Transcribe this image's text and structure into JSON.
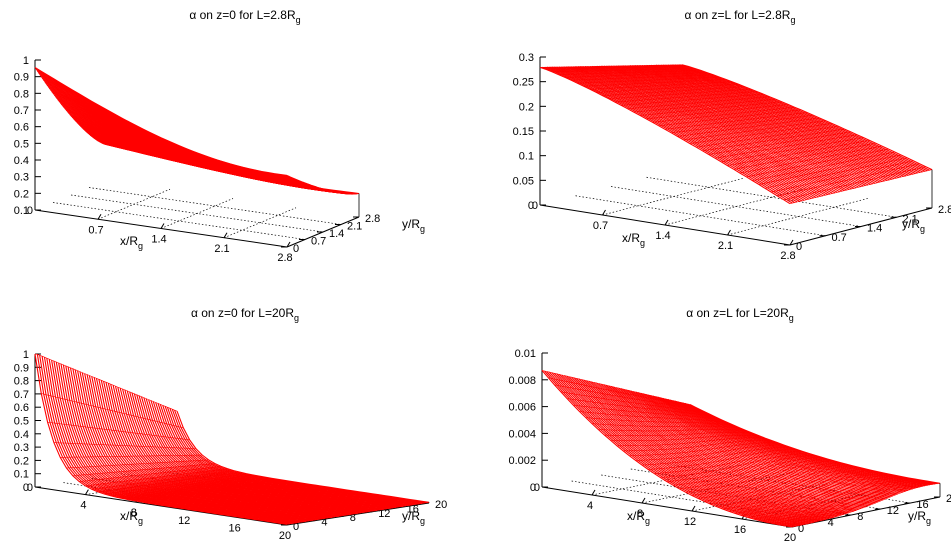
{
  "figure": {
    "panels": [
      {
        "id": "tl",
        "title_prefix": "α on z=0 for L=2.8R",
        "title_sub": "g",
        "xlabel_main": "x/R",
        "xlabel_sub": "g",
        "ylabel_main": "y/R",
        "ylabel_sub": "g"
      },
      {
        "id": "tr",
        "title_prefix": "α on z=L for L=2.8R",
        "title_sub": "g",
        "xlabel_main": "x/R",
        "xlabel_sub": "g",
        "ylabel_main": "y/R",
        "ylabel_sub": "g"
      },
      {
        "id": "bl",
        "title_prefix": "α on z=0 for L=20R",
        "title_sub": "g",
        "xlabel_main": "x/R",
        "xlabel_sub": "g",
        "ylabel_main": "y/R",
        "ylabel_sub": "g"
      },
      {
        "id": "br",
        "title_prefix": "α on z=L for L=20R",
        "title_sub": "g",
        "xlabel_main": "x/R",
        "xlabel_sub": "g",
        "ylabel_main": "y/R",
        "ylabel_sub": "g"
      }
    ]
  },
  "chart_data": [
    {
      "type": "surface",
      "title": "α on z=0 for L=2.8Rg",
      "xlabel": "x/Rg",
      "ylabel": "y/Rg",
      "x_ticks": [
        "0",
        "0.7",
        "1.4",
        "2.1",
        "2.8"
      ],
      "y_ticks": [
        "0",
        "0.7",
        "1.4",
        "2.1",
        "2.8"
      ],
      "z_ticks": [
        "0.1",
        "0.2",
        "0.3",
        "0.4",
        "0.5",
        "0.6",
        "0.7",
        "0.8",
        "0.9",
        "1"
      ],
      "xlim": [
        0,
        2.8
      ],
      "ylim": [
        0,
        2.8
      ],
      "zlim": [
        0.1,
        1
      ],
      "surface_color": "#ff0000",
      "profile_x": [
        0,
        0.7,
        1.4,
        2.1,
        2.8
      ],
      "profile_y_edge_x0": [
        1.0,
        0.62,
        0.5,
        0.4,
        0.33
      ],
      "profile_y_edge_x2p8": [
        0.55,
        0.3,
        0.22,
        0.25,
        0.33
      ],
      "profile_along_y0": [
        1.0,
        0.7,
        0.4,
        0.2,
        0.1
      ]
    },
    {
      "type": "surface",
      "title": "α on z=L for L=2.8Rg",
      "xlabel": "x/Rg",
      "ylabel": "y/Rg",
      "x_ticks": [
        "0",
        "0.7",
        "1.4",
        "2.1",
        "2.8"
      ],
      "y_ticks": [
        "0",
        "0.7",
        "1.4",
        "2.1",
        "2.8"
      ],
      "z_ticks": [
        "0",
        "0.05",
        "0.1",
        "0.15",
        "0.2",
        "0.25",
        "0.3"
      ],
      "xlim": [
        0,
        2.8
      ],
      "ylim": [
        0,
        2.8
      ],
      "zlim": [
        0,
        0.3
      ],
      "surface_color": "#ff0000",
      "profile_along_y0": [
        0.28,
        0.22,
        0.14,
        0.08,
        0.04
      ],
      "profile_along_y2p8": [
        0.2,
        0.15,
        0.09,
        0.06,
        0.07
      ]
    },
    {
      "type": "surface",
      "title": "α on z=0 for L=20Rg",
      "xlabel": "x/Rg",
      "ylabel": "y/Rg",
      "x_ticks": [
        "0",
        "4",
        "8",
        "12",
        "16",
        "20"
      ],
      "y_ticks": [
        "0",
        "4",
        "8",
        "12",
        "16",
        "20"
      ],
      "z_ticks": [
        "0",
        "0.1",
        "0.2",
        "0.3",
        "0.4",
        "0.5",
        "0.6",
        "0.7",
        "0.8",
        "0.9",
        "1"
      ],
      "xlim": [
        0,
        20
      ],
      "ylim": [
        0,
        20
      ],
      "zlim": [
        0,
        1
      ],
      "surface_color": "#ff0000",
      "profile_along_x_near0": [
        1.0,
        0.22,
        0.05,
        0.02,
        0.01,
        0.01
      ]
    },
    {
      "type": "surface",
      "title": "α on z=L for L=20Rg",
      "xlabel": "x/Rg",
      "ylabel": "y/Rg",
      "x_ticks": [
        "0",
        "4",
        "8",
        "12",
        "16",
        "20"
      ],
      "y_ticks": [
        "0",
        "4",
        "8",
        "12",
        "16",
        "20"
      ],
      "z_ticks": [
        "0",
        "0.002",
        "0.004",
        "0.006",
        "0.008",
        "0.01"
      ],
      "xlim": [
        0,
        20
      ],
      "ylim": [
        0,
        20
      ],
      "zlim": [
        0,
        0.01
      ],
      "surface_color": "#ff0000",
      "profile_along_y0": [
        0.0087,
        0.0055,
        0.0022,
        0.0005,
        0.0001,
        0.0
      ]
    }
  ]
}
